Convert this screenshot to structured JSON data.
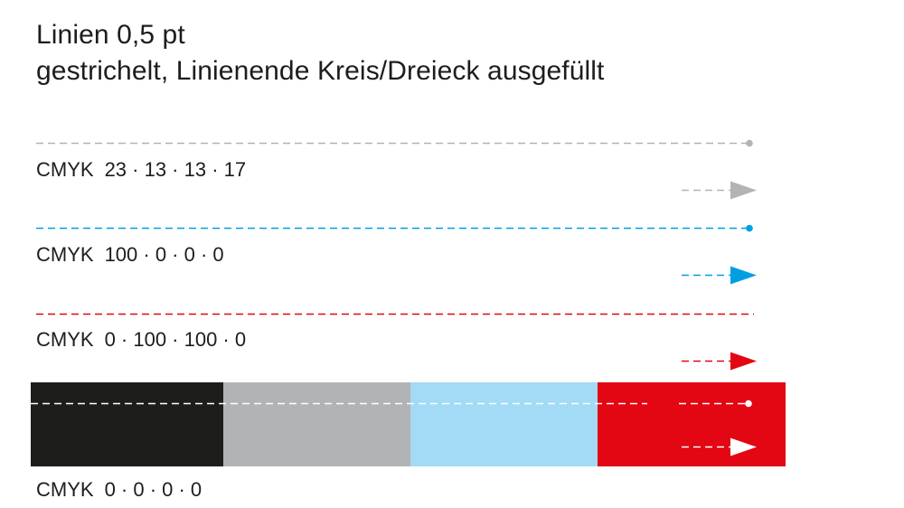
{
  "title": {
    "line1": "Linien 0,5 pt",
    "line2": "gestrichelt, Linienende Kreis/Dreieck ausgefüllt"
  },
  "rows": [
    {
      "prefix": "CMYK",
      "values": "23 · 13 · 13 · 17",
      "color": "#b1b3b4"
    },
    {
      "prefix": "CMYK",
      "values": "100 · 0 · 0 · 0",
      "color": "#009fe3"
    },
    {
      "prefix": "CMYK",
      "values": "0 · 100 · 100 · 0",
      "color": "#e30613"
    },
    {
      "prefix": "CMYK",
      "values": "0 · 0 · 0 · 0",
      "color": "#ffffff"
    }
  ],
  "background_swatches": [
    {
      "name": "black",
      "color": "#1d1d1b"
    },
    {
      "name": "gray",
      "color": "#b1b3b4"
    },
    {
      "name": "light-blue",
      "color": "#a3daf5"
    },
    {
      "name": "red",
      "color": "#e30613"
    }
  ]
}
